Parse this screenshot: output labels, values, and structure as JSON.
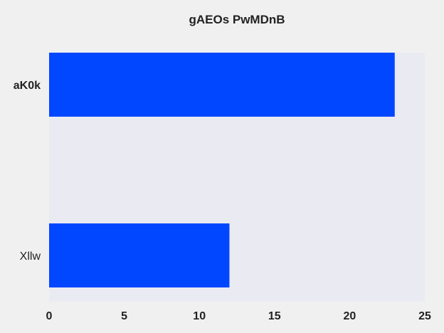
{
  "chart_data": {
    "type": "bar",
    "orientation": "horizontal",
    "title": "gAEOs PwMDnB",
    "categories": [
      "aK0k",
      "Xllw"
    ],
    "values": [
      23,
      12
    ],
    "xlim": [
      0,
      25
    ],
    "xticks": [
      "0",
      "5",
      "10",
      "15",
      "20",
      "25"
    ],
    "xlabel": "",
    "ylabel": "",
    "grid": false,
    "colors": {
      "bar": "#0047ff",
      "plot_background": "#eaeaf2",
      "figure_background": "#f0f0f0"
    }
  }
}
